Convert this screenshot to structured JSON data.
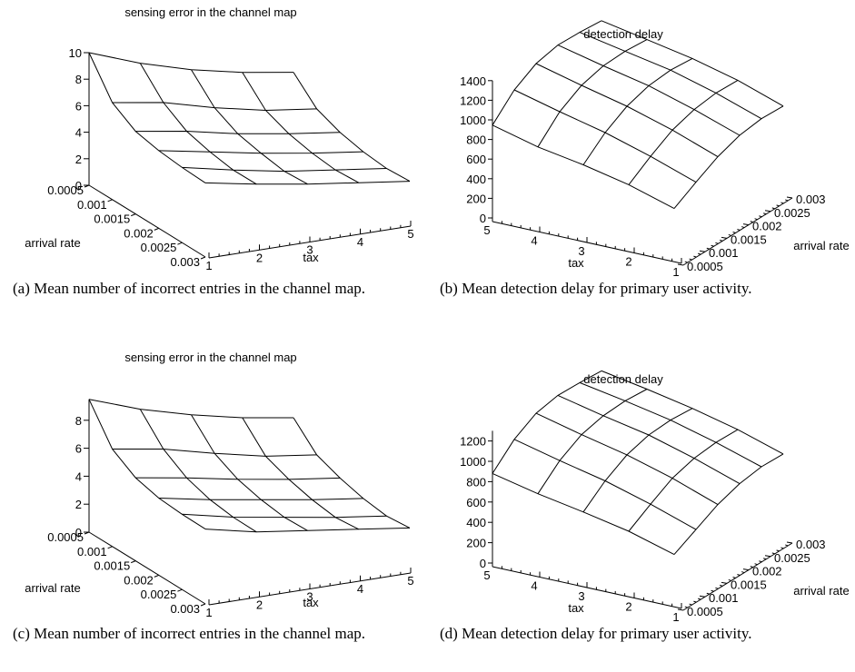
{
  "chart_data": [
    {
      "type": "surface",
      "panel_label": "(a)",
      "title": "sensing error in the channel map",
      "caption": "Mean number of incorrect entries in the channel map.",
      "x": {
        "label": "tax",
        "ticks": [
          "1",
          "2",
          "3",
          "4",
          "5"
        ],
        "range": [
          1,
          5
        ]
      },
      "y": {
        "label": "arrival rate",
        "ticks": [
          "0.0005",
          "0.001",
          "0.0015",
          "0.002",
          "0.0025",
          "0.003"
        ],
        "range": [
          0.0005,
          0.003
        ]
      },
      "z": {
        "ticks": [
          "0",
          "2",
          "4",
          "6",
          "8",
          "10"
        ],
        "range": [
          0,
          10
        ]
      },
      "tax": [
        1,
        2,
        3,
        4,
        5
      ],
      "arrival_rate": [
        0.0005,
        0.001,
        0.0015,
        0.002,
        0.0025,
        0.003
      ],
      "values": [
        [
          10.0,
          6.4,
          4.4,
          3.1,
          2.0,
          1.0
        ],
        [
          9.0,
          6.2,
          4.2,
          2.8,
          1.6,
          0.7
        ],
        [
          8.3,
          5.6,
          3.8,
          2.5,
          1.3,
          0.5
        ],
        [
          7.9,
          5.2,
          3.6,
          2.3,
          1.2,
          0.4
        ],
        [
          7.7,
          5.1,
          3.5,
          2.2,
          1.1,
          0.3
        ]
      ]
    },
    {
      "type": "surface",
      "panel_label": "(b)",
      "title": "detection delay",
      "caption": "Mean detection delay for primary user activity.",
      "x": {
        "label": "tax",
        "ticks": [
          "5",
          "4",
          "3",
          "2",
          "1"
        ],
        "range": [
          1,
          5
        ]
      },
      "y": {
        "label": "arrival rate",
        "ticks": [
          "0.0005",
          "0.001",
          "0.0015",
          "0.002",
          "0.0025",
          "0.003"
        ],
        "range": [
          0.0005,
          0.003
        ]
      },
      "z": {
        "ticks": [
          "0",
          "200",
          "400",
          "600",
          "800",
          "1000",
          "1200",
          "1400"
        ],
        "range": [
          0,
          1400
        ]
      },
      "tax": [
        1,
        2,
        3,
        4,
        5
      ],
      "arrival_rate": [
        0.0005,
        0.001,
        0.0015,
        0.002,
        0.0025,
        0.003
      ],
      "values": [
        [
          300,
          480,
          650,
          780,
          860,
          900
        ],
        [
          450,
          650,
          830,
          950,
          1030,
          1070
        ],
        [
          560,
          800,
          980,
          1100,
          1170,
          1200
        ],
        [
          650,
          920,
          1100,
          1210,
          1270,
          1300
        ],
        [
          780,
          1050,
          1230,
          1330,
          1370,
          1400
        ]
      ]
    },
    {
      "type": "surface",
      "panel_label": "(c)",
      "title": "sensing error in the channel map",
      "caption": "Mean number of incorrect entries in the channel map.",
      "x": {
        "label": "tax",
        "ticks": [
          "1",
          "2",
          "3",
          "4",
          "5"
        ],
        "range": [
          1,
          5
        ]
      },
      "y": {
        "label": "arrival rate",
        "ticks": [
          "0.0005",
          "0.001",
          "0.0015",
          "0.002",
          "0.0025",
          "0.003"
        ],
        "range": [
          0.0005,
          0.003
        ]
      },
      "z": {
        "ticks": [
          "0",
          "2",
          "4",
          "6",
          "8"
        ],
        "range": [
          0,
          9.5
        ]
      },
      "tax": [
        1,
        2,
        3,
        4,
        5
      ],
      "arrival_rate": [
        0.0005,
        0.001,
        0.0015,
        0.002,
        0.0025,
        0.003
      ],
      "values": [
        [
          9.5,
          6.1,
          4.2,
          2.9,
          1.9,
          1.0
        ],
        [
          8.6,
          5.9,
          4.0,
          2.6,
          1.5,
          0.6
        ],
        [
          8.0,
          5.4,
          3.7,
          2.4,
          1.3,
          0.5
        ],
        [
          7.6,
          5.0,
          3.5,
          2.2,
          1.1,
          0.4
        ],
        [
          7.4,
          4.9,
          3.4,
          2.1,
          1.0,
          0.3
        ]
      ]
    },
    {
      "type": "surface",
      "panel_label": "(d)",
      "title": "detection delay",
      "caption": "Mean detection delay for primary user activity.",
      "x": {
        "label": "tax",
        "ticks": [
          "5",
          "4",
          "3",
          "2",
          "1"
        ],
        "range": [
          1,
          5
        ]
      },
      "y": {
        "label": "arrival rate",
        "ticks": [
          "0.0005",
          "0.001",
          "0.0015",
          "0.002",
          "0.0025",
          "0.003"
        ],
        "range": [
          0.0005,
          0.003
        ]
      },
      "z": {
        "ticks": [
          "0",
          "200",
          "400",
          "600",
          "800",
          "1000",
          "1200"
        ],
        "range": [
          0,
          1300
        ]
      },
      "tax": [
        1,
        2,
        3,
        4,
        5
      ],
      "arrival_rate": [
        0.0005,
        0.001,
        0.0015,
        0.002,
        0.0025,
        0.003
      ],
      "values": [
        [
          280,
          440,
          600,
          720,
          800,
          840
        ],
        [
          420,
          600,
          770,
          880,
          950,
          990
        ],
        [
          520,
          740,
          910,
          1020,
          1080,
          1110
        ],
        [
          610,
          850,
          1020,
          1120,
          1180,
          1210
        ],
        [
          720,
          970,
          1140,
          1230,
          1270,
          1300
        ]
      ]
    }
  ]
}
